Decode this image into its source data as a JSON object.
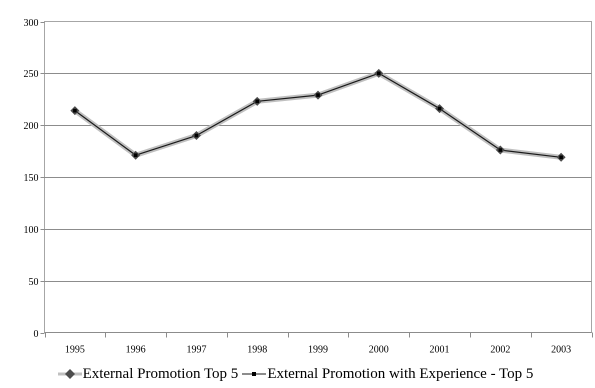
{
  "chart_data": {
    "type": "line",
    "title": "",
    "xlabel": "",
    "ylabel": "",
    "categories": [
      "1995",
      "1996",
      "1997",
      "1998",
      "1999",
      "2000",
      "2001",
      "2002",
      "2003"
    ],
    "ylim": [
      0,
      300
    ],
    "yticks": [
      0,
      50,
      100,
      150,
      200,
      250,
      300
    ],
    "grid": "horizontal",
    "legend_position": "bottom",
    "series": [
      {
        "name": "External Promotion Top 5",
        "values": [
          214,
          171,
          190,
          223,
          229,
          250,
          216,
          176,
          169
        ],
        "color": "#c0c0c0",
        "marker": "diamond",
        "marker_color": "#4d4d4d"
      },
      {
        "name": "External Promotion with Experience - Top 5",
        "values": [
          214,
          171,
          190,
          223,
          229,
          250,
          216,
          176,
          169
        ],
        "color": "#1a1a1a",
        "marker": "square",
        "marker_color": "#000000"
      }
    ]
  }
}
